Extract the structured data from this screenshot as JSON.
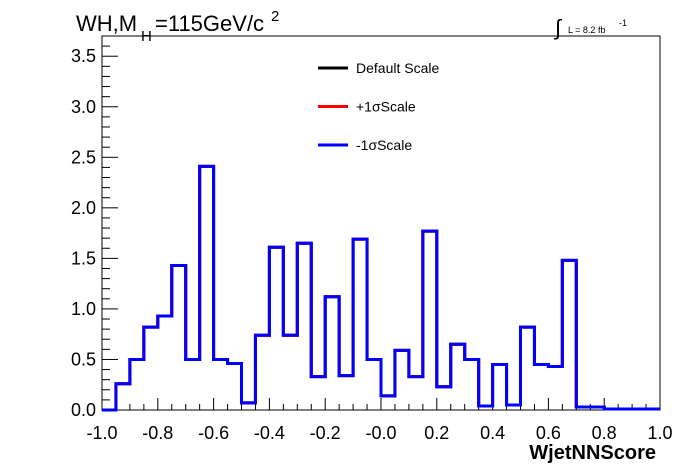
{
  "chart_data": {
    "type": "line",
    "title": {
      "main": "WH,M",
      "sub": "H",
      "value": "=115GeV/c",
      "sup": "2"
    },
    "lumi": {
      "integral": "∫",
      "text": "L = 8.2 fb",
      "sup": "-1"
    },
    "xlabel": "WjetNNScore",
    "ylabel": "",
    "xlim": [
      -1.0,
      1.0
    ],
    "ylim": [
      0.0,
      3.7
    ],
    "x_ticks": [
      "-1.0",
      "-0.8",
      "-0.6",
      "-0.4",
      "-0.2",
      "-0.0",
      "0.2",
      "0.4",
      "0.6",
      "0.8",
      "1.0"
    ],
    "y_ticks": [
      "0.0",
      "0.5",
      "1.0",
      "1.5",
      "2.0",
      "2.5",
      "3.0",
      "3.5"
    ],
    "bin_edges_start": -1.0,
    "bin_width": 0.05,
    "series": [
      {
        "name": "Default Scale",
        "color": "#000000",
        "values": [
          0.0,
          0.26,
          0.5,
          0.82,
          0.93,
          1.43,
          0.5,
          2.41,
          0.5,
          0.46,
          0.07,
          0.74,
          1.61,
          0.74,
          1.65,
          0.33,
          1.12,
          0.34,
          1.69,
          0.5,
          0.14,
          0.59,
          0.33,
          1.77,
          0.23,
          0.65,
          0.5,
          0.04,
          0.45,
          0.05,
          0.82,
          0.45,
          0.43,
          1.48,
          0.03,
          0.03,
          0.01,
          0.01,
          0.01,
          0.01
        ]
      },
      {
        "name": "+1σScale",
        "color": "#ff0000",
        "values": [
          0.0,
          0.26,
          0.5,
          0.82,
          0.93,
          1.43,
          0.5,
          2.41,
          0.5,
          0.46,
          0.07,
          0.74,
          1.61,
          0.74,
          1.65,
          0.33,
          1.12,
          0.34,
          1.69,
          0.5,
          0.14,
          0.59,
          0.33,
          1.77,
          0.23,
          0.65,
          0.5,
          0.04,
          0.45,
          0.05,
          0.82,
          0.45,
          0.43,
          1.48,
          0.03,
          0.03,
          0.01,
          0.01,
          0.01,
          0.01
        ]
      },
      {
        "name": "-1σScale",
        "color": "#0000ff",
        "values": [
          0.0,
          0.26,
          0.5,
          0.82,
          0.93,
          1.43,
          0.5,
          2.41,
          0.5,
          0.46,
          0.07,
          0.74,
          1.61,
          0.74,
          1.65,
          0.33,
          1.12,
          0.34,
          1.69,
          0.5,
          0.14,
          0.59,
          0.33,
          1.77,
          0.23,
          0.65,
          0.5,
          0.04,
          0.45,
          0.05,
          0.82,
          0.45,
          0.43,
          1.48,
          0.03,
          0.03,
          0.01,
          0.01,
          0.01,
          0.01
        ]
      }
    ],
    "legend": {
      "position": "top-center",
      "entries": [
        "Default Scale",
        "+1σScale",
        "-1σScale"
      ]
    },
    "grid": false
  }
}
